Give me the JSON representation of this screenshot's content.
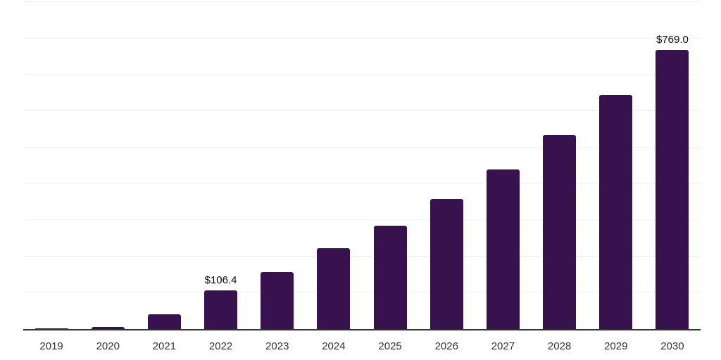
{
  "chart": {
    "background_color": "#ffffff",
    "bar_color": "#37124F",
    "grid_color": "#f0f0f0",
    "axis_color": "#333333",
    "tick_label_color": "#333333",
    "data_label_color": "#0a0a0a"
  },
  "chart_data": {
    "type": "bar",
    "title": "",
    "xlabel": "",
    "ylabel": "",
    "categories": [
      "2019",
      "2020",
      "2021",
      "2022",
      "2023",
      "2024",
      "2025",
      "2026",
      "2027",
      "2028",
      "2029",
      "2030"
    ],
    "values": [
      1,
      6,
      41,
      106.4,
      156,
      223,
      285,
      358,
      440,
      534,
      644,
      769
    ],
    "data_labels": [
      "",
      "",
      "",
      "$106.4",
      "",
      "",
      "",
      "",
      "",
      "",
      "",
      "$769.0"
    ],
    "ylim": [
      0,
      900
    ],
    "grid_step": 100,
    "grid": true,
    "legend": false,
    "y_axis_labels_visible": false
  }
}
